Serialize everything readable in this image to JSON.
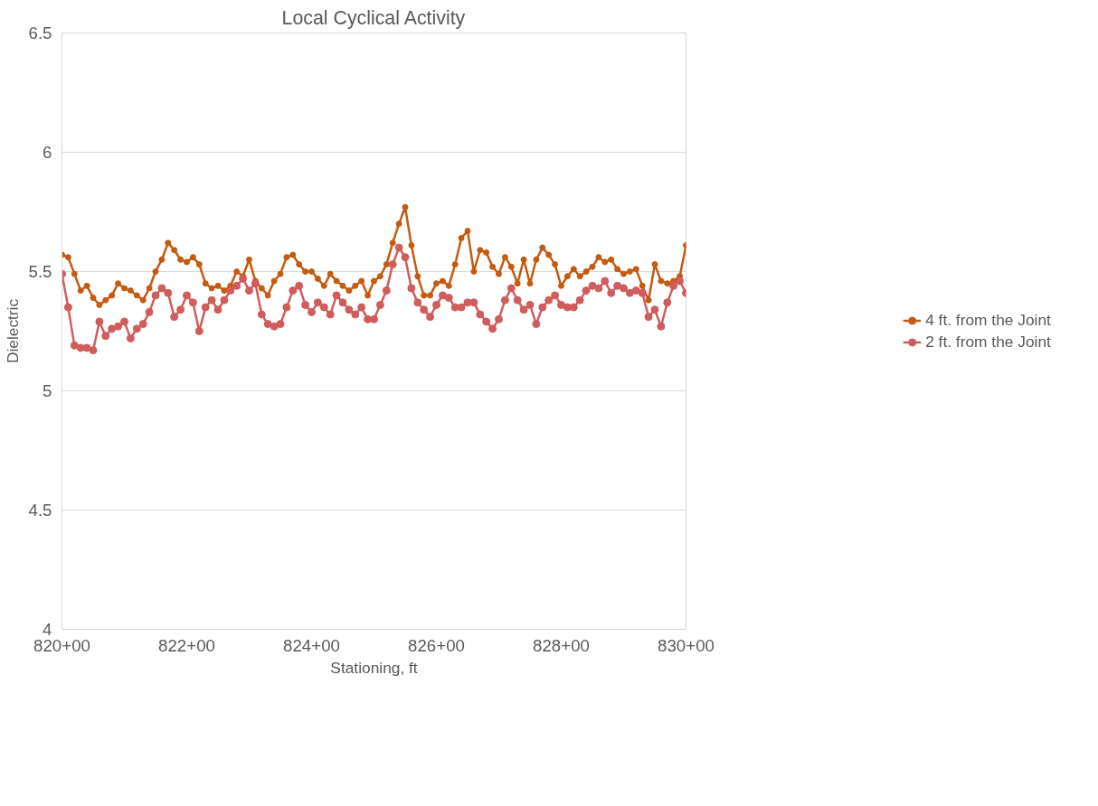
{
  "chart_data": {
    "type": "line",
    "title": "Local Cyclical Activity",
    "xlabel": "Stationing, ft",
    "ylabel": "Dielectric",
    "categories": [
      "820+00",
      null,
      null,
      null,
      null,
      null,
      null,
      null,
      null,
      null,
      null,
      null,
      null,
      null,
      null,
      null,
      null,
      null,
      null,
      null,
      "822+00",
      null,
      null,
      null,
      null,
      null,
      null,
      null,
      null,
      null,
      null,
      null,
      null,
      null,
      null,
      null,
      null,
      null,
      null,
      null,
      "824+00",
      null,
      null,
      null,
      null,
      null,
      null,
      null,
      null,
      null,
      null,
      null,
      null,
      null,
      null,
      null,
      null,
      null,
      null,
      null,
      "826+00",
      null,
      null,
      null,
      null,
      null,
      null,
      null,
      null,
      null,
      null,
      null,
      null,
      null,
      null,
      null,
      null,
      null,
      null,
      null,
      "828+00",
      null,
      null,
      null,
      null,
      null,
      null,
      null,
      null,
      null,
      null,
      null,
      null,
      null,
      null,
      null,
      null,
      null,
      null,
      null,
      "830+00"
    ],
    "series": [
      {
        "name": "4 ft. from the Joint",
        "color": "#c55a11",
        "values": [
          5.57,
          5.56,
          5.49,
          5.42,
          5.44,
          5.39,
          5.36,
          5.38,
          5.4,
          5.45,
          5.43,
          5.42,
          5.4,
          5.38,
          5.43,
          5.5,
          5.55,
          5.62,
          5.59,
          5.55,
          5.54,
          5.56,
          5.53,
          5.45,
          5.43,
          5.44,
          5.42,
          5.44,
          5.5,
          5.48,
          5.55,
          5.46,
          5.43,
          5.4,
          5.46,
          5.49,
          5.56,
          5.57,
          5.53,
          5.5,
          5.5,
          5.47,
          5.44,
          5.49,
          5.46,
          5.44,
          5.42,
          5.44,
          5.46,
          5.4,
          5.46,
          5.48,
          5.53,
          5.62,
          5.7,
          5.77,
          5.61,
          5.48,
          5.4,
          5.4,
          5.45,
          5.46,
          5.44,
          5.53,
          5.64,
          5.67,
          5.5,
          5.59,
          5.58,
          5.52,
          5.49,
          5.56,
          5.52,
          5.45,
          5.55,
          5.45,
          5.55,
          5.6,
          5.57,
          5.53,
          5.44,
          5.48,
          5.51,
          5.48,
          5.5,
          5.52,
          5.56,
          5.54,
          5.55,
          5.51,
          5.49,
          5.5,
          5.51,
          5.44,
          5.38,
          5.53,
          5.46,
          5.45,
          5.46,
          5.48,
          5.61
        ]
      },
      {
        "name": "2 ft. from the Joint",
        "color": "#d05c5c",
        "values": [
          5.49,
          5.35,
          5.19,
          5.18,
          5.18,
          5.17,
          5.29,
          5.23,
          5.26,
          5.27,
          5.29,
          5.22,
          5.26,
          5.28,
          5.33,
          5.4,
          5.43,
          5.41,
          5.31,
          5.34,
          5.4,
          5.37,
          5.25,
          5.35,
          5.38,
          5.34,
          5.38,
          5.42,
          5.44,
          5.47,
          5.42,
          5.45,
          5.32,
          5.28,
          5.27,
          5.28,
          5.35,
          5.42,
          5.44,
          5.36,
          5.33,
          5.37,
          5.35,
          5.32,
          5.4,
          5.37,
          5.34,
          5.32,
          5.35,
          5.3,
          5.3,
          5.36,
          5.42,
          5.53,
          5.6,
          5.56,
          5.43,
          5.37,
          5.34,
          5.31,
          5.36,
          5.4,
          5.39,
          5.35,
          5.35,
          5.37,
          5.37,
          5.32,
          5.29,
          5.26,
          5.3,
          5.38,
          5.43,
          5.38,
          5.34,
          5.36,
          5.28,
          5.35,
          5.38,
          5.4,
          5.36,
          5.35,
          5.35,
          5.38,
          5.42,
          5.44,
          5.43,
          5.46,
          5.41,
          5.44,
          5.43,
          5.41,
          5.42,
          5.41,
          5.31,
          5.34,
          5.27,
          5.37,
          5.44,
          5.46,
          5.41
        ]
      }
    ],
    "ylim": [
      4,
      6.5
    ],
    "yticks": [
      {
        "value": 4,
        "label": "4"
      },
      {
        "value": 4.5,
        "label": "4.5"
      },
      {
        "value": 5,
        "label": "5"
      },
      {
        "value": 5.5,
        "label": "5.5"
      },
      {
        "value": 6,
        "label": "6"
      },
      {
        "value": 6.5,
        "label": "6.5"
      }
    ],
    "grid": "y",
    "legend": "right",
    "marker": "circle",
    "line_style": "solid"
  }
}
